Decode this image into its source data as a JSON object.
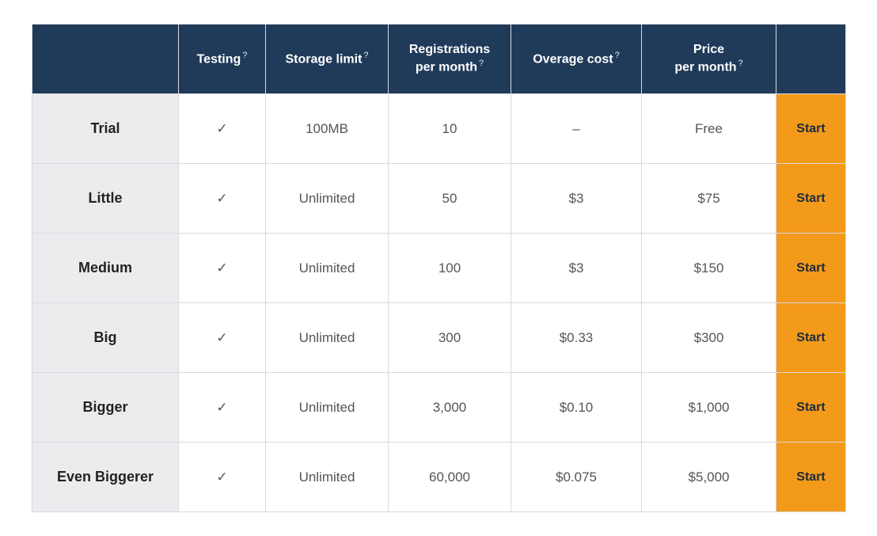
{
  "style": {
    "header_bg": "#203a5a",
    "header_fg": "#ffffff",
    "row_label_bg": "#ececef",
    "cell_bg": "#ffffff",
    "border_color": "#d9d9de",
    "action_bg": "#f39a1b",
    "action_fg": "#1d2b3a",
    "help_marker": "?",
    "checkmark": "✓",
    "em_dash": "–"
  },
  "columns": {
    "plan": {
      "label": ""
    },
    "testing": {
      "label": "Testing",
      "help": true
    },
    "storage": {
      "label": "Storage limit",
      "help": true
    },
    "regs": {
      "label": "Registrations per month",
      "help": true
    },
    "overage": {
      "label": "Overage cost",
      "help": true
    },
    "price": {
      "label": "Price per month",
      "help": true
    },
    "action": {
      "label": ""
    }
  },
  "action_label": "Start",
  "plans": [
    {
      "name": "Trial",
      "testing": true,
      "storage": "100MB",
      "registrations": "10",
      "overage": "–",
      "price": "Free"
    },
    {
      "name": "Little",
      "testing": true,
      "storage": "Unlimited",
      "registrations": "50",
      "overage": "$3",
      "price": "$75"
    },
    {
      "name": "Medium",
      "testing": true,
      "storage": "Unlimited",
      "registrations": "100",
      "overage": "$3",
      "price": "$150"
    },
    {
      "name": "Big",
      "testing": true,
      "storage": "Unlimited",
      "registrations": "300",
      "overage": "$0.33",
      "price": "$300"
    },
    {
      "name": "Bigger",
      "testing": true,
      "storage": "Unlimited",
      "registrations": "3,000",
      "overage": "$0.10",
      "price": "$1,000"
    },
    {
      "name": "Even Biggerer",
      "testing": true,
      "storage": "Unlimited",
      "registrations": "60,000",
      "overage": "$0.075",
      "price": "$5,000"
    }
  ]
}
